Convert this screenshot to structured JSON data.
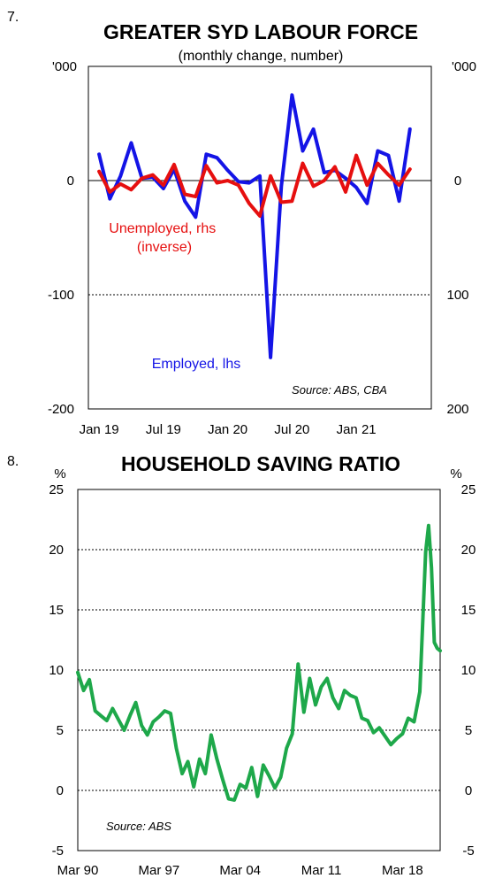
{
  "chart_data": [
    {
      "type": "line",
      "number": "7.",
      "title": "GREATER SYD LABOUR FORCE",
      "subtitle": "(monthly change, number)",
      "left_unit": "'000",
      "right_unit": "'000",
      "left_ylim": [
        -200,
        0
      ],
      "right_ylim": [
        200,
        0
      ],
      "left_ticks": [
        "0",
        "-100",
        "-200"
      ],
      "right_ticks": [
        "0",
        "100",
        "200"
      ],
      "x_labels": [
        "Jan 19",
        "Jul 19",
        "Jan 20",
        "Jul 20",
        "Jan 21"
      ],
      "x_range": [
        "2018-12",
        "2021-08"
      ],
      "gridlines": [
        0,
        -100
      ],
      "source": "Source: ABS, CBA",
      "series": [
        {
          "name": "Employed, lhs",
          "axis": "left",
          "color": "#1414e6",
          "x": [
            "2019-01",
            "2019-02",
            "2019-03",
            "2019-04",
            "2019-05",
            "2019-06",
            "2019-07",
            "2019-08",
            "2019-09",
            "2019-10",
            "2019-11",
            "2019-12",
            "2020-01",
            "2020-02",
            "2020-03",
            "2020-04",
            "2020-05",
            "2020-06",
            "2020-07",
            "2020-08",
            "2020-09",
            "2020-10",
            "2020-11",
            "2020-12",
            "2021-01",
            "2021-02",
            "2021-03",
            "2021-04",
            "2021-05",
            "2021-06"
          ],
          "values": [
            23,
            -16,
            4,
            33,
            2,
            3,
            -7,
            10,
            -18,
            -32,
            23,
            20,
            9,
            -1,
            -2,
            4,
            -155,
            -5,
            75,
            26,
            45,
            7,
            9,
            2,
            -6,
            -20,
            26,
            22,
            -18,
            45
          ]
        },
        {
          "name": "Unemployed, rhs\n(inverse)",
          "axis": "right",
          "color": "#e60f0f",
          "x": [
            "2019-01",
            "2019-02",
            "2019-03",
            "2019-04",
            "2019-05",
            "2019-06",
            "2019-07",
            "2019-08",
            "2019-09",
            "2019-10",
            "2019-11",
            "2019-12",
            "2020-01",
            "2020-02",
            "2020-03",
            "2020-04",
            "2020-05",
            "2020-06",
            "2020-07",
            "2020-08",
            "2020-09",
            "2020-10",
            "2020-11",
            "2020-12",
            "2021-01",
            "2021-02",
            "2021-03",
            "2021-04",
            "2021-05",
            "2021-06"
          ],
          "values": [
            -8,
            10,
            3,
            8,
            -2,
            -5,
            4,
            -14,
            12,
            14,
            -13,
            2,
            0,
            4,
            20,
            31,
            -4,
            19,
            18,
            -15,
            5,
            0,
            -12,
            10,
            -22,
            4,
            -15,
            -5,
            4,
            -10
          ]
        }
      ]
    },
    {
      "type": "line",
      "number": "8.",
      "title": "HOUSEHOLD SAVING RATIO",
      "left_unit": "%",
      "right_unit": "%",
      "ylim": [
        -5,
        25
      ],
      "y_ticks": [
        "25",
        "20",
        "15",
        "10",
        "5",
        "0",
        "-5"
      ],
      "x_labels": [
        "Mar 90",
        "Mar 97",
        "Mar 04",
        "Mar 11",
        "Mar 18"
      ],
      "x_range": [
        "1990-Q1",
        "2021-Q2"
      ],
      "gridlines": [
        20,
        15,
        10,
        5,
        0
      ],
      "source": "Source: ABS",
      "series": [
        {
          "name": "",
          "color": "#1ea84a",
          "x": [
            "1990-Q1",
            "1990-Q3",
            "1991-Q1",
            "1991-Q3",
            "1992-Q1",
            "1992-Q3",
            "1993-Q1",
            "1993-Q3",
            "1994-Q1",
            "1994-Q3",
            "1995-Q1",
            "1995-Q3",
            "1996-Q1",
            "1996-Q3",
            "1997-Q1",
            "1997-Q3",
            "1998-Q1",
            "1998-Q3",
            "1999-Q1",
            "1999-Q3",
            "2000-Q1",
            "2000-Q3",
            "2001-Q1",
            "2001-Q3",
            "2002-Q1",
            "2002-Q3",
            "2003-Q1",
            "2003-Q3",
            "2004-Q1",
            "2004-Q3",
            "2005-Q1",
            "2005-Q3",
            "2006-Q1",
            "2006-Q3",
            "2007-Q1",
            "2007-Q3",
            "2008-Q1",
            "2008-Q3",
            "2009-Q1",
            "2009-Q3",
            "2010-Q1",
            "2010-Q3",
            "2011-Q1",
            "2011-Q3",
            "2012-Q1",
            "2012-Q3",
            "2013-Q1",
            "2013-Q3",
            "2014-Q1",
            "2014-Q3",
            "2015-Q1",
            "2015-Q3",
            "2016-Q1",
            "2016-Q3",
            "2017-Q1",
            "2017-Q3",
            "2018-Q1",
            "2018-Q3",
            "2019-Q1",
            "2019-Q3",
            "2020-Q1",
            "2020-Q2",
            "2020-Q3",
            "2020-Q4",
            "2021-Q1",
            "2021-Q2"
          ],
          "values": [
            9.8,
            8.3,
            9.2,
            6.6,
            6.2,
            5.8,
            6.8,
            5.9,
            5.0,
            6.2,
            7.3,
            5.4,
            4.6,
            5.7,
            6.1,
            6.6,
            6.4,
            3.5,
            1.4,
            2.4,
            0.3,
            2.6,
            1.4,
            4.6,
            2.6,
            0.9,
            -0.7,
            -0.8,
            0.5,
            0.2,
            1.9,
            -0.5,
            2.1,
            1.2,
            0.2,
            1.1,
            3.5,
            4.7,
            10.5,
            6.5,
            9.3,
            7.1,
            8.6,
            9.3,
            7.7,
            6.8,
            8.3,
            7.9,
            7.7,
            6.0,
            5.8,
            4.8,
            5.2,
            4.5,
            3.8,
            4.3,
            4.7,
            6.0,
            5.7,
            8.2,
            19.8,
            22.0,
            18.5,
            12.3,
            11.8,
            11.6
          ]
        }
      ]
    }
  ]
}
